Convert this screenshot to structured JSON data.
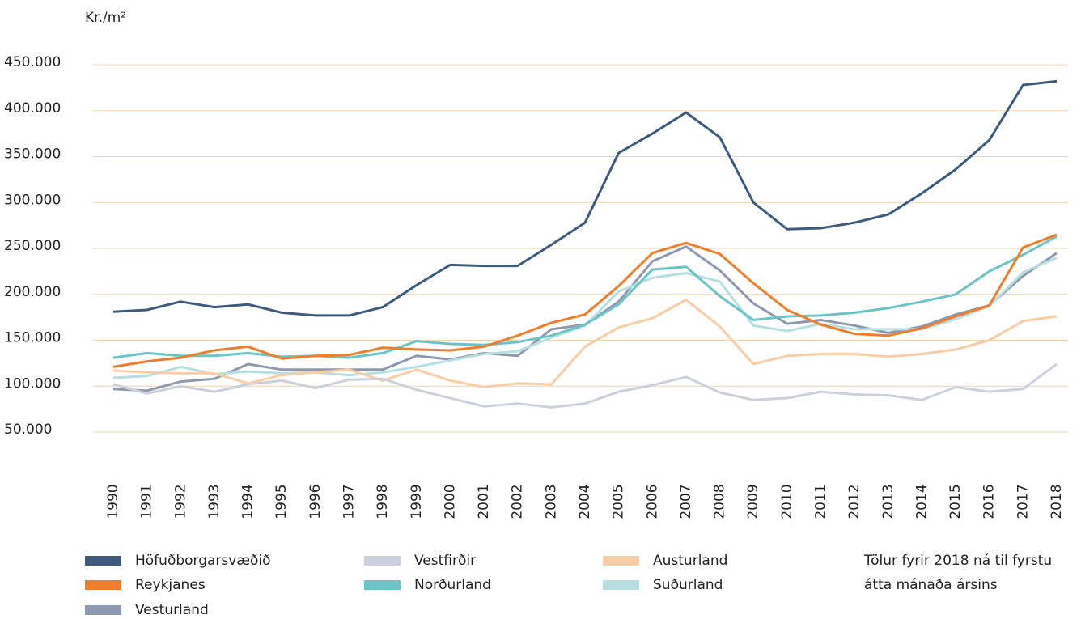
{
  "chart_data": {
    "type": "line",
    "y_label": "Kr./m²",
    "categories": [
      "1990",
      "1991",
      "1992",
      "1993",
      "1994",
      "1995",
      "1996",
      "1997",
      "1998",
      "1999",
      "2000",
      "2001",
      "2002",
      "2003",
      "2004",
      "2005",
      "2006",
      "2007",
      "2008",
      "2009",
      "2010",
      "2011",
      "2012",
      "2013",
      "2014",
      "2015",
      "2016",
      "2017",
      "2018"
    ],
    "series": [
      {
        "name": "Höfuðborgarsvæðið",
        "color": "#3e5a7d",
        "values": [
          181000,
          183000,
          192000,
          186000,
          189000,
          180000,
          177000,
          177000,
          186000,
          210000,
          232000,
          231000,
          231000,
          254000,
          278000,
          354000,
          375000,
          398000,
          371000,
          300000,
          271000,
          272000,
          278000,
          287000,
          310000,
          336000,
          368000,
          428000,
          432000
        ]
      },
      {
        "name": "Vestfirðir",
        "color": "#ccd0dc",
        "values": [
          102000,
          92000,
          100000,
          94000,
          102000,
          106000,
          98000,
          107000,
          108000,
          96000,
          87000,
          78000,
          81000,
          77000,
          81000,
          94000,
          101000,
          110000,
          93000,
          85000,
          87000,
          94000,
          91000,
          90000,
          85000,
          99000,
          94000,
          97000,
          124000
        ]
      },
      {
        "name": "Austurland",
        "color": "#f9cda6",
        "values": [
          117000,
          115000,
          114000,
          114000,
          103000,
          112000,
          115000,
          118000,
          106000,
          118000,
          106000,
          99000,
          103000,
          102000,
          143000,
          164000,
          174000,
          194000,
          165000,
          124000,
          133000,
          135000,
          135000,
          132000,
          135000,
          140000,
          150000,
          171000,
          176000
        ]
      },
      {
        "name": "Reykjanes",
        "color": "#f07d2a",
        "values": [
          121000,
          127000,
          131000,
          139000,
          143000,
          130000,
          133000,
          134000,
          142000,
          140000,
          139000,
          143000,
          155000,
          169000,
          178000,
          209000,
          245000,
          256000,
          244000,
          212000,
          183000,
          167000,
          157000,
          155000,
          163000,
          176000,
          188000,
          251000,
          265000
        ]
      },
      {
        "name": "Norðurland",
        "color": "#6bc4c6",
        "values": [
          131000,
          136000,
          133000,
          133000,
          136000,
          132000,
          133000,
          131000,
          136000,
          149000,
          146000,
          145000,
          148000,
          155000,
          167000,
          189000,
          227000,
          230000,
          198000,
          172000,
          176000,
          177000,
          180000,
          185000,
          192000,
          200000,
          225000,
          243000,
          263000
        ]
      },
      {
        "name": "Suðurland",
        "color": "#b5dfe0",
        "values": [
          109000,
          111000,
          121000,
          113000,
          116000,
          114000,
          115000,
          112000,
          115000,
          121000,
          128000,
          135000,
          138000,
          153000,
          166000,
          203000,
          218000,
          223000,
          214000,
          166000,
          160000,
          168000,
          162000,
          162000,
          162000,
          173000,
          187000,
          224000,
          240000
        ]
      },
      {
        "name": "Vesturland",
        "color": "#8f98b1",
        "values": [
          97000,
          95000,
          105000,
          108000,
          124000,
          118000,
          118000,
          118000,
          118000,
          133000,
          129000,
          136000,
          133000,
          162000,
          167000,
          192000,
          236000,
          252000,
          226000,
          190000,
          168000,
          172000,
          166000,
          158000,
          165000,
          178000,
          188000,
          220000,
          245000
        ]
      }
    ],
    "ylim": [
      50000,
      450000
    ],
    "yticks": [
      {
        "value": 50000,
        "label": "50.000"
      },
      {
        "value": 100000,
        "label": "100.000"
      },
      {
        "value": 150000,
        "label": "150.000"
      },
      {
        "value": 200000,
        "label": "200.000"
      },
      {
        "value": 250000,
        "label": "250.000"
      },
      {
        "value": 300000,
        "label": "300.000"
      },
      {
        "value": 350000,
        "label": "350.000"
      },
      {
        "value": 400000,
        "label": "400.000"
      },
      {
        "value": 450000,
        "label": "450.000"
      }
    ],
    "grid": true,
    "note": [
      "Tölur fyrir 2018 ná til fyrstu",
      "átta mánaða ársins"
    ]
  }
}
